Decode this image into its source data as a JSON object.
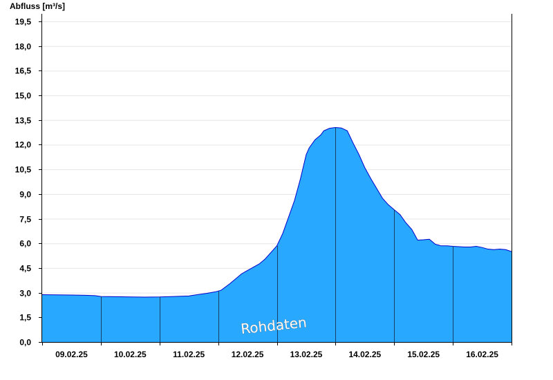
{
  "chart_data": {
    "type": "area",
    "ylabel": "Abfluss [m³/s]",
    "xlabel": "",
    "ylim": [
      0,
      19.5
    ],
    "yticks": [
      "0,0",
      "1,5",
      "3,0",
      "4,5",
      "6,0",
      "7,5",
      "9,0",
      "10,5",
      "12,0",
      "13,5",
      "15,0",
      "16,5",
      "18,0",
      "19,5"
    ],
    "ytick_values": [
      0,
      1.5,
      3,
      4.5,
      6,
      7.5,
      9,
      10.5,
      12,
      13.5,
      15,
      16.5,
      18,
      19.5
    ],
    "x_range": [
      0,
      8
    ],
    "day_labels": [
      "09.02.25",
      "10.02.25",
      "11.02.25",
      "12.02.25",
      "13.02.25",
      "14.02.25",
      "15.02.25",
      "16.02.25"
    ],
    "grid": true,
    "watermark": "Rohdaten",
    "colors": {
      "fill": "#29a8ff",
      "line": "#0000cc",
      "grid": "#e6e6e6"
    },
    "series": [
      {
        "x": [
          0,
          0.25,
          0.5,
          0.75,
          0.9,
          1.0,
          1.25,
          1.5,
          1.75,
          2.0,
          2.25,
          2.5,
          2.6,
          2.8,
          2.95,
          3.05,
          3.2,
          3.4,
          3.5,
          3.6,
          3.7,
          3.8,
          3.9,
          4.0,
          4.1,
          4.2,
          4.3,
          4.4,
          4.5,
          4.55,
          4.6,
          4.65,
          4.7,
          4.75,
          4.8,
          4.9,
          5.0,
          5.1,
          5.2,
          5.3,
          5.4,
          5.5,
          5.6,
          5.7,
          5.8,
          5.9,
          6.0,
          6.1,
          6.2,
          6.3,
          6.4,
          6.5,
          6.6,
          6.7,
          6.8,
          6.9,
          7.0,
          7.1,
          7.2,
          7.3,
          7.4,
          7.5,
          7.6,
          7.7,
          7.8,
          7.9,
          8.0
        ],
        "y": [
          2.88,
          2.87,
          2.86,
          2.84,
          2.82,
          2.77,
          2.76,
          2.74,
          2.73,
          2.74,
          2.77,
          2.8,
          2.86,
          2.96,
          3.05,
          3.15,
          3.55,
          4.15,
          4.35,
          4.55,
          4.75,
          5.05,
          5.45,
          5.85,
          6.6,
          7.6,
          8.6,
          9.9,
          11.4,
          11.8,
          12.05,
          12.3,
          12.45,
          12.6,
          12.85,
          13.0,
          13.05,
          13.02,
          12.85,
          12.1,
          11.4,
          10.6,
          9.95,
          9.35,
          8.75,
          8.35,
          8.05,
          7.75,
          7.25,
          6.85,
          6.2,
          6.22,
          6.25,
          5.95,
          5.85,
          5.85,
          5.82,
          5.8,
          5.78,
          5.78,
          5.82,
          5.75,
          5.65,
          5.62,
          5.65,
          5.62,
          5.5
        ]
      }
    ]
  }
}
